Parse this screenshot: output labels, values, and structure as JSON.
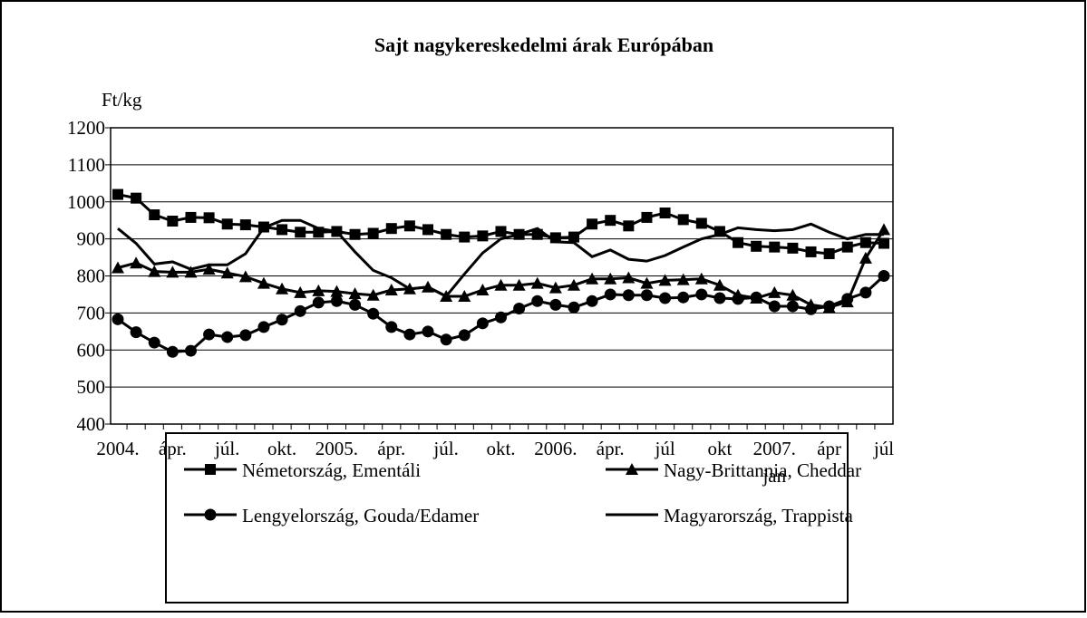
{
  "chart_data": {
    "type": "line",
    "title": "Sajt nagykereskedelmi árak Európában",
    "y_label": "Ft/kg",
    "categories": [
      "2004.",
      null,
      null,
      "ápr.",
      null,
      null,
      "júl.",
      null,
      null,
      "okt.",
      null,
      null,
      "2005.",
      null,
      null,
      "ápr.",
      null,
      null,
      "júl.",
      null,
      null,
      "okt.",
      null,
      null,
      "2006.",
      null,
      null,
      "ápr.",
      null,
      null,
      "júl",
      null,
      null,
      "okt",
      null,
      null,
      "2007.\njan",
      null,
      null,
      "ápr",
      null,
      null,
      "júl"
    ],
    "series": [
      {
        "name": "Németország, Ementáli",
        "color": "#000000",
        "marker": "square",
        "values": [
          1020,
          1010,
          965,
          948,
          958,
          957,
          940,
          938,
          932,
          925,
          918,
          918,
          920,
          912,
          915,
          928,
          935,
          925,
          912,
          905,
          908,
          920,
          912,
          912,
          903,
          905,
          940,
          950,
          935,
          958,
          970,
          952,
          942,
          920,
          890,
          880,
          878,
          875,
          865,
          860,
          878,
          890,
          888
        ]
      },
      {
        "name": "Nagy-Brittannia, Cheddar",
        "color": "#000000",
        "marker": "triangle",
        "values": [
          822,
          835,
          812,
          810,
          810,
          818,
          808,
          798,
          780,
          765,
          755,
          760,
          758,
          752,
          748,
          762,
          765,
          770,
          745,
          745,
          762,
          775,
          775,
          780,
          768,
          775,
          792,
          792,
          795,
          780,
          788,
          790,
          792,
          775,
          748,
          740,
          755,
          748,
          722,
          715,
          730,
          848,
          925
        ]
      },
      {
        "name": "Lengyelország, Gouda/Edamer",
        "color": "#000000",
        "marker": "circle",
        "values": [
          683,
          648,
          620,
          595,
          598,
          642,
          635,
          640,
          662,
          682,
          705,
          728,
          732,
          722,
          698,
          662,
          642,
          650,
          628,
          640,
          672,
          688,
          712,
          732,
          722,
          715,
          732,
          750,
          748,
          748,
          740,
          742,
          750,
          740,
          738,
          742,
          718,
          718,
          710,
          718,
          738,
          755,
          800
        ]
      },
      {
        "name": "Magyarország, Trappista",
        "color": "#000000",
        "marker": "none",
        "values": [
          928,
          888,
          832,
          838,
          818,
          830,
          830,
          860,
          930,
          950,
          950,
          928,
          920,
          865,
          815,
          795,
          765,
          770,
          745,
          805,
          862,
          900,
          912,
          928,
          892,
          890,
          852,
          870,
          845,
          840,
          855,
          878,
          900,
          912,
          930,
          925,
          922,
          925,
          940,
          918,
          900,
          912,
          912
        ]
      }
    ],
    "ylim": [
      400,
      1200
    ],
    "yticks": [
      400,
      500,
      600,
      700,
      800,
      900,
      1000,
      1100,
      1200
    ],
    "grid": true
  }
}
